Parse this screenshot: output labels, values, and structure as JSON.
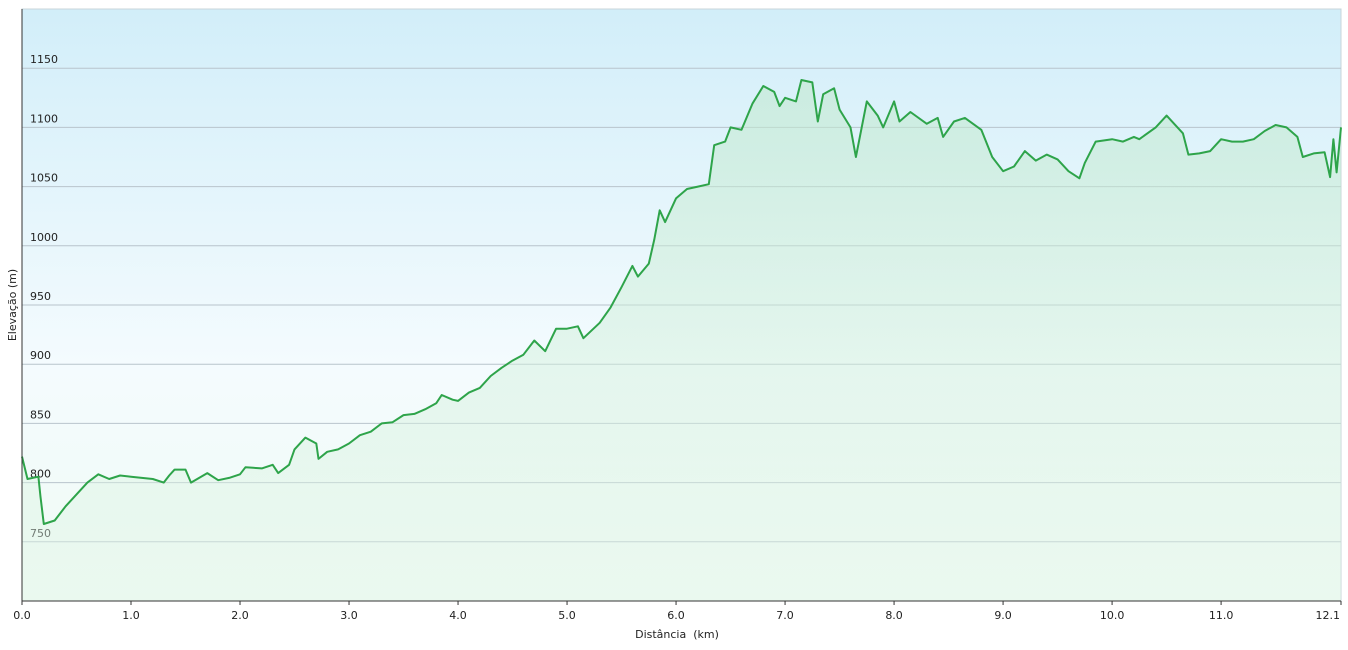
{
  "chart_data": {
    "type": "area",
    "xlabel": "Distância  (km)",
    "ylabel": "Elevação (m)",
    "color": "#2ea44a",
    "xlim": [
      0,
      12.1
    ],
    "ylim": [
      700,
      1200
    ],
    "xticks": [
      {
        "value": 0,
        "label": "0.0"
      },
      {
        "value": 1,
        "label": "1.0"
      },
      {
        "value": 2,
        "label": "2.0"
      },
      {
        "value": 3,
        "label": "3.0"
      },
      {
        "value": 4,
        "label": "4.0"
      },
      {
        "value": 5,
        "label": "5.0"
      },
      {
        "value": 6,
        "label": "6.0"
      },
      {
        "value": 7,
        "label": "7.0"
      },
      {
        "value": 8,
        "label": "8.0"
      },
      {
        "value": 9,
        "label": "9.0"
      },
      {
        "value": 10,
        "label": "10.0"
      },
      {
        "value": 11,
        "label": "11.0"
      },
      {
        "value": 12.1,
        "label": "12.1"
      }
    ],
    "yticks": [
      750,
      800,
      850,
      900,
      950,
      1000,
      1050,
      1100,
      1150
    ],
    "grid": true,
    "x": [
      0,
      0.05,
      0.15,
      0.17,
      0.2,
      0.3,
      0.4,
      0.5,
      0.6,
      0.7,
      0.8,
      0.9,
      1.0,
      1.1,
      1.2,
      1.3,
      1.35,
      1.4,
      1.5,
      1.55,
      1.7,
      1.8,
      1.9,
      2.0,
      2.05,
      2.2,
      2.3,
      2.35,
      2.45,
      2.5,
      2.6,
      2.7,
      2.72,
      2.8,
      2.9,
      3.0,
      3.1,
      3.2,
      3.3,
      3.4,
      3.5,
      3.6,
      3.7,
      3.8,
      3.85,
      3.95,
      4.0,
      4.1,
      4.2,
      4.3,
      4.4,
      4.5,
      4.6,
      4.7,
      4.8,
      4.9,
      5.0,
      5.1,
      5.15,
      5.3,
      5.4,
      5.5,
      5.6,
      5.65,
      5.75,
      5.8,
      5.85,
      5.9,
      6.0,
      6.1,
      6.2,
      6.3,
      6.35,
      6.45,
      6.5,
      6.6,
      6.7,
      6.8,
      6.9,
      6.95,
      7.0,
      7.1,
      7.15,
      7.25,
      7.3,
      7.35,
      7.45,
      7.5,
      7.6,
      7.65,
      7.75,
      7.85,
      7.9,
      8.0,
      8.05,
      8.15,
      8.3,
      8.4,
      8.45,
      8.55,
      8.65,
      8.8,
      8.9,
      9.0,
      9.1,
      9.2,
      9.3,
      9.4,
      9.5,
      9.6,
      9.7,
      9.75,
      9.85,
      10.0,
      10.1,
      10.2,
      10.25,
      10.4,
      10.5,
      10.65,
      10.7,
      10.8,
      10.9,
      11.0,
      11.1,
      11.2,
      11.3,
      11.4,
      11.5,
      11.6,
      11.7,
      11.75,
      11.85,
      11.95,
      12.0,
      12.03,
      12.06,
      12.1
    ],
    "values": [
      822,
      803,
      805,
      788,
      765,
      768,
      780,
      790,
      800,
      807,
      803,
      806,
      805,
      804,
      803,
      800,
      806,
      811,
      811,
      800,
      808,
      802,
      804,
      807,
      813,
      812,
      815,
      808,
      815,
      828,
      838,
      833,
      820,
      826,
      828,
      833,
      840,
      843,
      850,
      851,
      857,
      858,
      862,
      867,
      874,
      870,
      869,
      876,
      880,
      890,
      897,
      903,
      908,
      920,
      911,
      930,
      930,
      932,
      922,
      935,
      948,
      965,
      983,
      974,
      985,
      1005,
      1030,
      1020,
      1040,
      1048,
      1050,
      1052,
      1085,
      1088,
      1100,
      1098,
      1120,
      1135,
      1130,
      1118,
      1125,
      1122,
      1140,
      1138,
      1105,
      1128,
      1133,
      1115,
      1100,
      1075,
      1122,
      1110,
      1100,
      1122,
      1105,
      1113,
      1103,
      1108,
      1092,
      1105,
      1108,
      1098,
      1075,
      1063,
      1067,
      1080,
      1072,
      1077,
      1073,
      1063,
      1057,
      1070,
      1088,
      1090,
      1088,
      1092,
      1090,
      1100,
      1110,
      1095,
      1077,
      1078,
      1080,
      1090,
      1088,
      1088,
      1090,
      1097,
      1102,
      1100,
      1092,
      1075,
      1078,
      1079,
      1058,
      1090,
      1062,
      1100
    ]
  }
}
